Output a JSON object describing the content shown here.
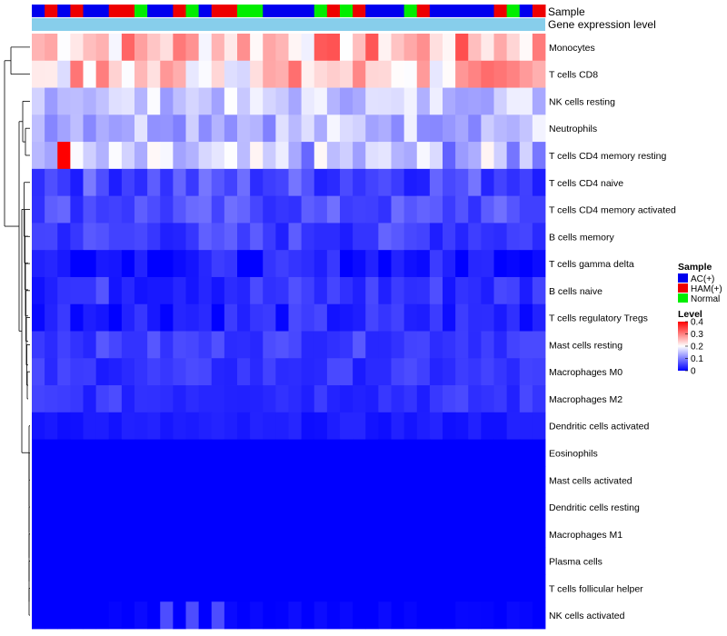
{
  "chart_data": {
    "type": "heatmap",
    "annotation_rows": {
      "sample_label": "Sample",
      "expression_label": "Gene expression level"
    },
    "sample_groups": [
      "AC(+)",
      "HAM(+)",
      "AC(+)",
      "HAM(+)",
      "AC(+)",
      "AC(+)",
      "HAM(+)",
      "HAM(+)",
      "Normal",
      "AC(+)",
      "AC(+)",
      "HAM(+)",
      "Normal",
      "AC(+)",
      "HAM(+)",
      "HAM(+)",
      "Normal",
      "Normal",
      "AC(+)",
      "AC(+)",
      "AC(+)",
      "AC(+)",
      "Normal",
      "HAM(+)",
      "Normal",
      "HAM(+)",
      "AC(+)",
      "AC(+)",
      "AC(+)",
      "Normal",
      "HAM(+)",
      "AC(+)",
      "AC(+)",
      "AC(+)",
      "AC(+)",
      "AC(+)",
      "HAM(+)",
      "Normal",
      "AC(+)",
      "HAM(+)"
    ],
    "sample_colors": [
      "#0000ee",
      "#ee0000",
      "#0000ee",
      "#ee0000",
      "#0000ee",
      "#0000ee",
      "#ee0000",
      "#ee0000",
      "#00ee00",
      "#0000ee",
      "#0000ee",
      "#ee0000",
      "#00ee00",
      "#0000ee",
      "#ee0000",
      "#ee0000",
      "#00ee00",
      "#00ee00",
      "#0000ee",
      "#0000ee",
      "#0000ee",
      "#0000ee",
      "#00ee00",
      "#ee0000",
      "#00ee00",
      "#ee0000",
      "#0000ee",
      "#0000ee",
      "#0000ee",
      "#00ee00",
      "#ee0000",
      "#0000ee",
      "#0000ee",
      "#0000ee",
      "#0000ee",
      "#0000ee",
      "#ee0000",
      "#00ee00",
      "#0000ee",
      "#ee0000"
    ],
    "expression_color": "#87ceeb",
    "rows": [
      "Monocytes",
      "T cells CD8",
      "NK cells resting",
      "Neutrophils",
      "T cells CD4 memory resting",
      "T cells CD4 naive",
      "T cells CD4 memory activated",
      "B cells memory",
      "T cells gamma delta",
      "B cells naive",
      "T cells regulatory  Tregs",
      "Mast cells resting",
      "Macrophages M0",
      "Macrophages M2",
      "Dendritic cells activated",
      "Eosinophils",
      "Mast cells activated",
      "Dendritic cells resting",
      "Macrophages M1",
      "Plasma cells",
      "T cells follicular helper",
      "NK cells activated"
    ],
    "row_base_values": [
      0.26,
      0.24,
      0.16,
      0.15,
      0.14,
      0.06,
      0.06,
      0.05,
      0.02,
      0.04,
      0.03,
      0.05,
      0.04,
      0.04,
      0.02,
      0.0,
      0.0,
      0.0,
      0.0,
      0.0,
      0.0,
      0.0
    ],
    "row_spread": [
      0.08,
      0.08,
      0.04,
      0.05,
      0.07,
      0.04,
      0.03,
      0.03,
      0.03,
      0.03,
      0.03,
      0.02,
      0.02,
      0.02,
      0.01,
      0.0,
      0.0,
      0.0,
      0.0,
      0.0,
      0.0,
      0.01
    ],
    "n_samples": 40,
    "color_scale": {
      "low": "#0000ff",
      "mid": "#ffffff",
      "high": "#ff0000",
      "min": 0,
      "mid_value": 0.2,
      "max": 0.4
    },
    "legend": {
      "sample_title": "Sample",
      "sample_entries": [
        {
          "label": "AC(+)",
          "color": "#0000ee"
        },
        {
          "label": "HAM(+)",
          "color": "#ee0000"
        },
        {
          "label": "Normal",
          "color": "#00ee00"
        }
      ],
      "level_title": "Level",
      "level_ticks": [
        "0.4",
        "0.3",
        "0.2",
        "0.1",
        "0"
      ],
      "level_tick_values": [
        0.4,
        0.3,
        0.2,
        0.1,
        0
      ]
    }
  }
}
